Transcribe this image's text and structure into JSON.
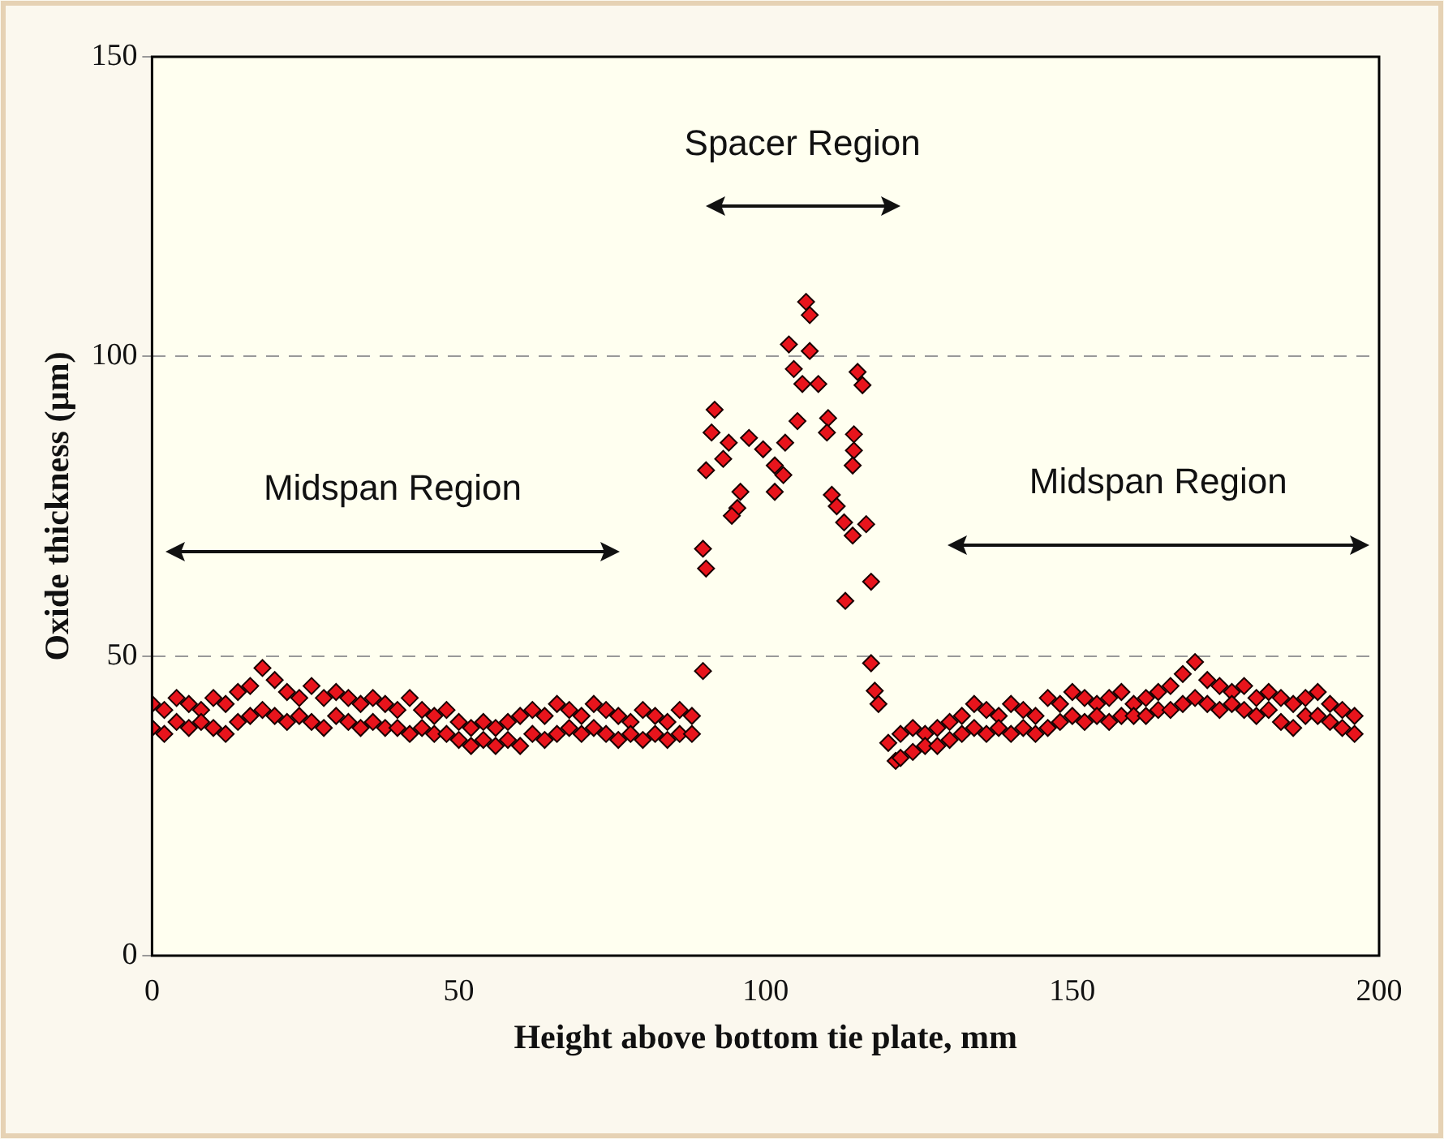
{
  "chart_data": {
    "type": "scatter",
    "xlabel": "Height above bottom tie plate, mm",
    "ylabel": "Oxide thickness (µm)",
    "xlim": [
      0,
      200
    ],
    "xticks": [
      0,
      50,
      100,
      150,
      200
    ],
    "ylim": [
      0,
      150
    ],
    "yticks": [
      0,
      50,
      100,
      150
    ],
    "grid": "y",
    "marker": "diamond",
    "legend": false,
    "annotations": [
      "Midspan Region",
      "Spacer Region",
      "Midspan Region"
    ],
    "series": [
      {
        "color": "#e8141c",
        "x": [
          0,
          0,
          2,
          2,
          4,
          4,
          6,
          6,
          8,
          8,
          10,
          10,
          12,
          12,
          14,
          14,
          16,
          16,
          18,
          18,
          20,
          20,
          22,
          22,
          24,
          24,
          26,
          26,
          28,
          28,
          30,
          30,
          32,
          32,
          34,
          34,
          36,
          36,
          38,
          38,
          40,
          40,
          42,
          42,
          44,
          44,
          46,
          46,
          48,
          48,
          50,
          50,
          52,
          52,
          54,
          54,
          56,
          56,
          58,
          58,
          60,
          60,
          62,
          62,
          64,
          64,
          66,
          66,
          68,
          68,
          70,
          70,
          72,
          72,
          74,
          74,
          76,
          76,
          78,
          78,
          80,
          80,
          82,
          82,
          84,
          84,
          86,
          86,
          88,
          88,
          89.8,
          89.8,
          90.3,
          91.7,
          91.2,
          94,
          90.3,
          93.1,
          95.9,
          95.4,
          94.5,
          97.3,
          99.6,
          101.5,
          102.9,
          101.5,
          103.2,
          105.2,
          106.6,
          107.2,
          103.8,
          107.2,
          104.6,
          106,
          108.6,
          110.2,
          110,
          115,
          115.8,
          114.4,
          114.4,
          114.2,
          110.8,
          111.6,
          112.8,
          116.4,
          114.2,
          117.2,
          113,
          117.2,
          117.8,
          118.4,
          120,
          121.2,
          122,
          122,
          124,
          124,
          126,
          126,
          128,
          128,
          130,
          130,
          132,
          132,
          134,
          134,
          136,
          136,
          138,
          138,
          140,
          140,
          142,
          142,
          144,
          144,
          146,
          146,
          148,
          148,
          150,
          150,
          152,
          152,
          154,
          154,
          156,
          156,
          158,
          158,
          160,
          160,
          162,
          162,
          164,
          164,
          166,
          166,
          168,
          168,
          170,
          170,
          172,
          172,
          174,
          174,
          176,
          176,
          178,
          178,
          180,
          180,
          182,
          182,
          184,
          184,
          186,
          186,
          188,
          188,
          190,
          190,
          192,
          192,
          194,
          194,
          196,
          196
        ],
        "values": [
          42,
          38,
          41,
          37,
          43,
          39,
          42,
          38,
          41,
          39,
          43,
          38,
          42,
          37,
          44,
          39,
          45,
          40,
          48,
          41,
          46,
          40,
          44,
          39,
          43,
          40,
          45,
          39,
          43,
          38,
          44,
          40,
          43,
          39,
          42,
          38,
          43,
          39,
          42,
          38,
          41,
          38,
          43,
          37,
          41,
          38,
          40,
          37,
          41,
          37,
          39,
          36,
          38,
          35,
          39,
          36,
          38,
          35,
          39,
          36,
          40,
          35,
          41,
          37,
          40,
          36,
          42,
          37,
          41,
          38,
          40,
          37,
          42,
          38,
          41,
          37,
          40,
          36,
          39,
          37,
          41,
          36,
          40,
          37,
          39,
          36,
          41,
          37,
          40,
          37,
          47.5,
          67.9,
          64.6,
          91.1,
          87.3,
          85.6,
          81,
          82.9,
          77.4,
          74.7,
          73.4,
          86.4,
          84.5,
          81.8,
          80.2,
          77.4,
          85.6,
          89.2,
          109.1,
          106.9,
          102,
          100.9,
          97.9,
          95.4,
          95.4,
          89.7,
          87.3,
          97.4,
          95.2,
          87,
          84.3,
          81.8,
          76.9,
          75,
          72.3,
          72,
          70.1,
          62.4,
          59.2,
          48.8,
          44.2,
          42,
          35.5,
          32.5,
          37,
          33,
          38,
          34,
          37,
          35,
          38,
          35,
          39,
          36,
          40,
          37,
          42,
          38,
          41,
          37,
          40,
          38,
          42,
          37,
          41,
          38,
          40,
          37,
          43,
          38,
          42,
          39,
          44,
          40,
          43,
          39,
          42,
          40,
          43,
          39,
          44,
          40,
          42,
          40,
          43,
          40,
          44,
          41,
          45,
          41,
          47,
          42,
          49,
          43,
          46,
          42,
          45,
          41,
          44,
          42,
          45,
          41,
          43,
          40,
          44,
          41,
          43,
          39,
          42,
          38,
          43,
          40,
          44,
          40,
          42,
          39,
          41,
          38,
          40,
          37
        ]
      }
    ]
  }
}
